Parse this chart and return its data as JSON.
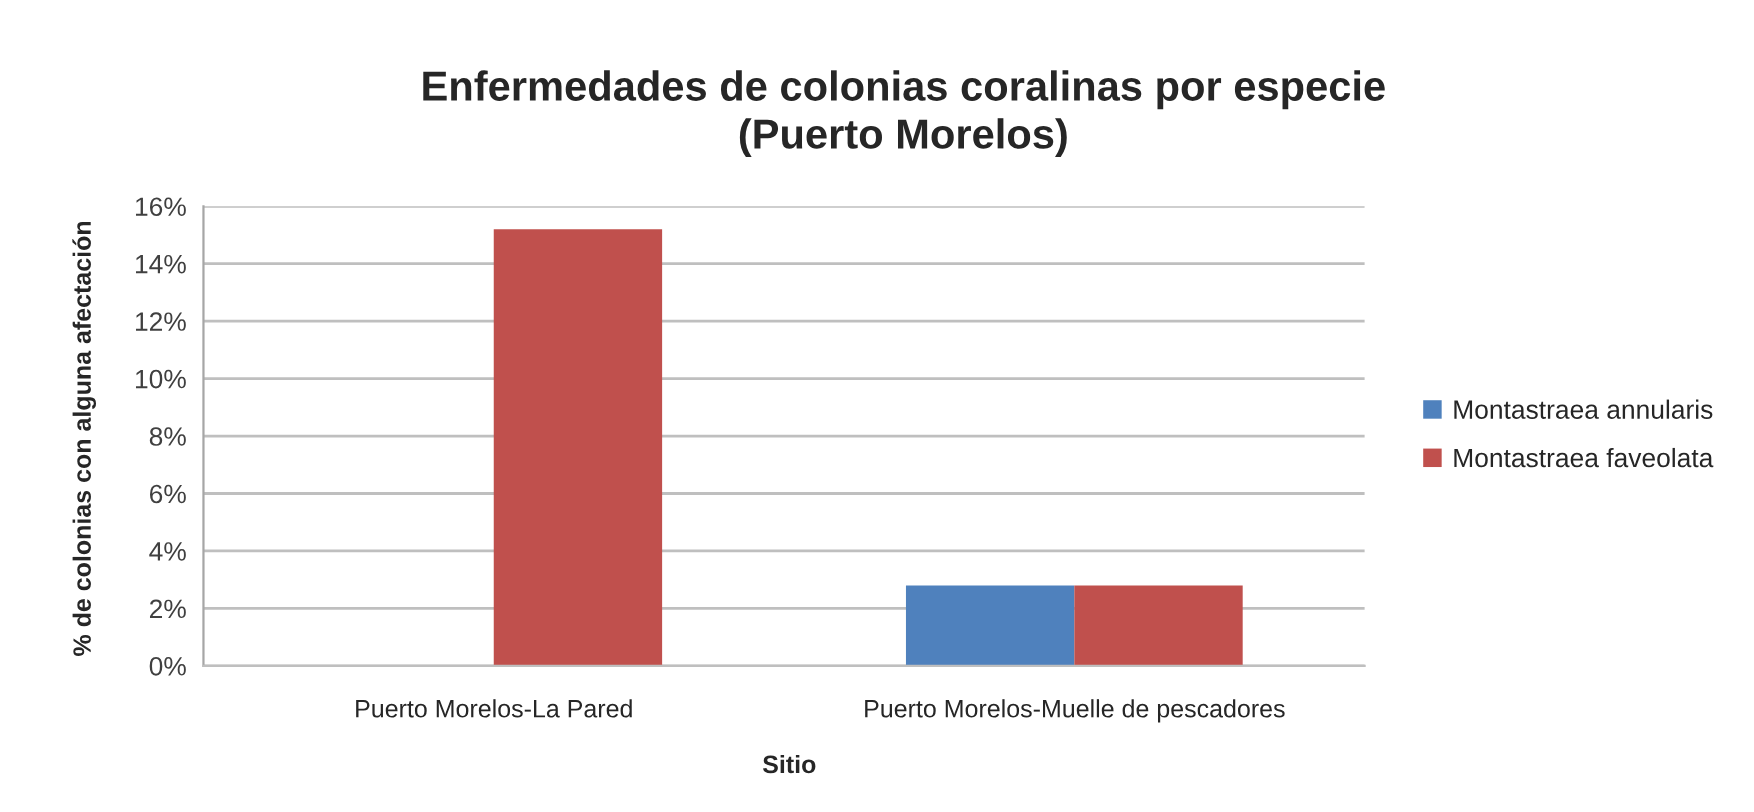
{
  "chart_data": {
    "type": "bar",
    "title": "Enfermedades de colonias coralinas por especie\n(Puerto Morelos)",
    "xlabel": "Sitio",
    "ylabel": "% de colonias con alguna afectación",
    "categories": [
      "Puerto Morelos-La Pared",
      "Puerto Morelos-Muelle de pescadores"
    ],
    "series": [
      {
        "name": "Montastraea annularis",
        "color": "#4f81bd",
        "values": [
          null,
          2.8
        ]
      },
      {
        "name": "Montastraea faveolata",
        "color": "#c0504d",
        "values": [
          15.2,
          2.8
        ]
      }
    ],
    "ylim": [
      0,
      16
    ],
    "yticks": [
      {
        "value": 0,
        "label": "0%"
      },
      {
        "value": 2,
        "label": "2%"
      },
      {
        "value": 4,
        "label": "4%"
      },
      {
        "value": 6,
        "label": "6%"
      },
      {
        "value": 8,
        "label": "8%"
      },
      {
        "value": 10,
        "label": "10%"
      },
      {
        "value": 12,
        "label": "12%"
      },
      {
        "value": 14,
        "label": "14%"
      },
      {
        "value": 16,
        "label": "16%"
      }
    ],
    "grid": "y",
    "legend": "right"
  }
}
